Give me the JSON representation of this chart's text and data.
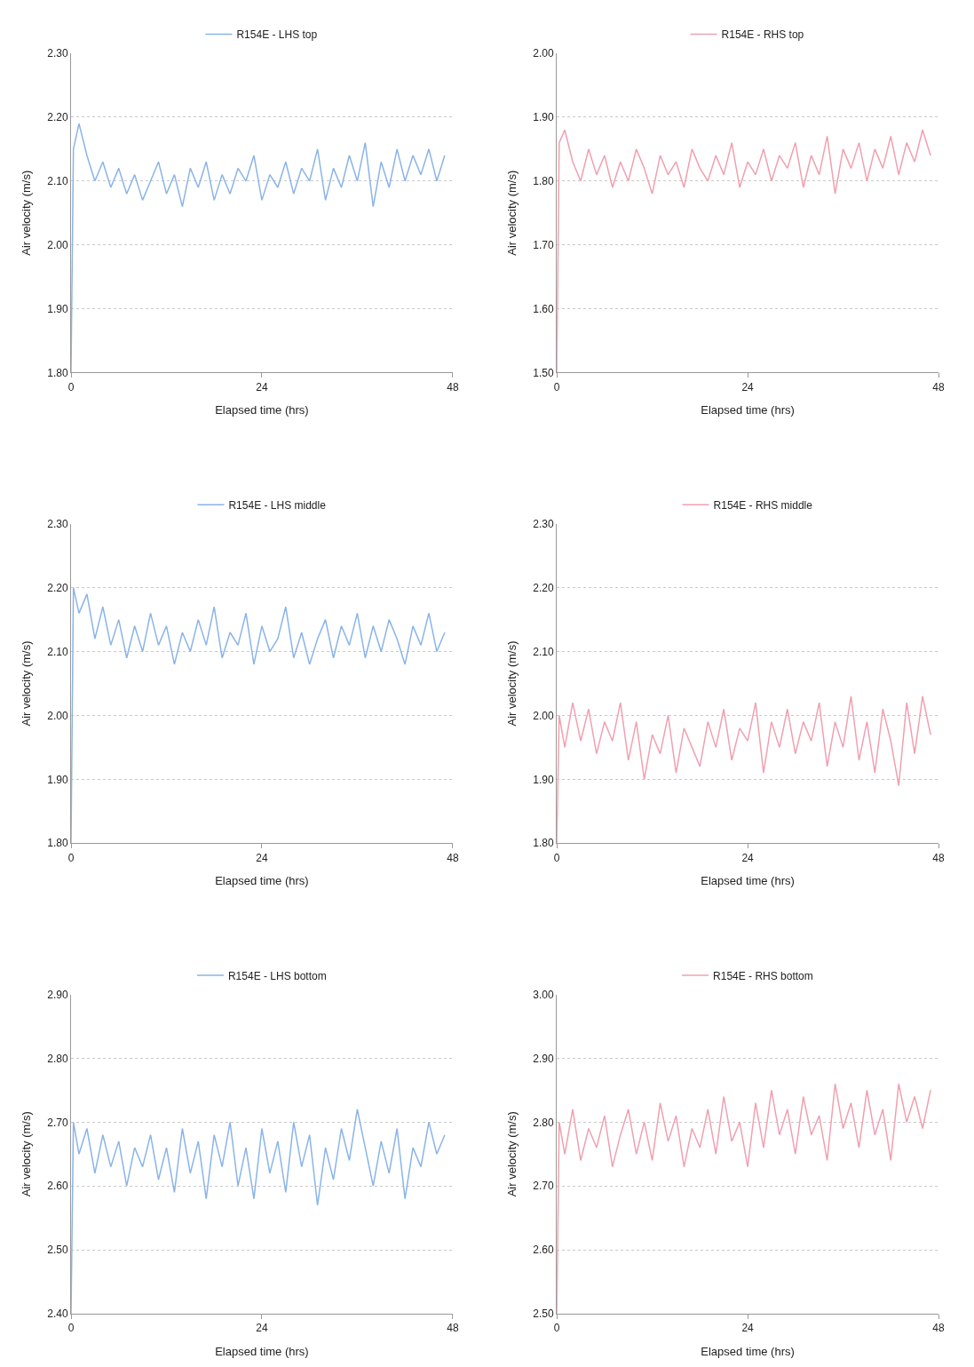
{
  "chart_data": [
    {
      "type": "line",
      "xlabel": "Elapsed time (hrs)",
      "ylabel": "Air velocity (m/s)",
      "x": [
        0,
        0.3,
        1,
        2,
        3,
        4,
        5,
        6,
        7,
        8,
        9,
        10,
        11,
        12,
        13,
        14,
        15,
        16,
        17,
        18,
        19,
        20,
        21,
        22,
        23,
        24,
        25,
        26,
        27,
        28,
        29,
        30,
        31,
        32,
        33,
        34,
        35,
        36,
        37,
        38,
        39,
        40,
        41,
        42,
        43,
        44,
        45,
        46,
        47
      ],
      "xlim": [
        0,
        48
      ],
      "xticks": [
        0,
        24,
        48
      ],
      "ylim": [
        1.8,
        2.3
      ],
      "yticks": [
        {
          "value": 1.8,
          "label": "1.80"
        },
        {
          "value": 1.9,
          "label": "1.90"
        },
        {
          "value": 2.0,
          "label": "2.00"
        },
        {
          "value": 2.1,
          "label": "2.10"
        },
        {
          "value": 2.2,
          "label": "2.20"
        },
        {
          "value": 2.3,
          "label": "2.30"
        }
      ],
      "grid": "y",
      "legend": "top",
      "marker": "none",
      "line_style": "solid",
      "series": [
        {
          "name": "R154E - LHS top",
          "color": "#8ab4e8",
          "values": [
            1.8,
            2.15,
            2.19,
            2.14,
            2.1,
            2.13,
            2.09,
            2.12,
            2.08,
            2.11,
            2.07,
            2.1,
            2.13,
            2.08,
            2.11,
            2.06,
            2.12,
            2.09,
            2.13,
            2.07,
            2.11,
            2.08,
            2.12,
            2.1,
            2.14,
            2.07,
            2.11,
            2.09,
            2.13,
            2.08,
            2.12,
            2.1,
            2.15,
            2.07,
            2.12,
            2.09,
            2.14,
            2.1,
            2.16,
            2.06,
            2.13,
            2.09,
            2.15,
            2.1,
            2.14,
            2.11,
            2.15,
            2.1,
            2.14
          ]
        }
      ]
    },
    {
      "type": "line",
      "xlabel": "Elapsed time (hrs)",
      "ylabel": "Air velocity (m/s)",
      "x": [
        0,
        0.3,
        1,
        2,
        3,
        4,
        5,
        6,
        7,
        8,
        9,
        10,
        11,
        12,
        13,
        14,
        15,
        16,
        17,
        18,
        19,
        20,
        21,
        22,
        23,
        24,
        25,
        26,
        27,
        28,
        29,
        30,
        31,
        32,
        33,
        34,
        35,
        36,
        37,
        38,
        39,
        40,
        41,
        42,
        43,
        44,
        45,
        46,
        47
      ],
      "xlim": [
        0,
        48
      ],
      "xticks": [
        0,
        24,
        48
      ],
      "ylim": [
        1.5,
        2.0
      ],
      "yticks": [
        {
          "value": 1.5,
          "label": "1.50"
        },
        {
          "value": 1.6,
          "label": "1.60"
        },
        {
          "value": 1.7,
          "label": "1.70"
        },
        {
          "value": 1.8,
          "label": "1.80"
        },
        {
          "value": 1.9,
          "label": "1.90"
        },
        {
          "value": 2.0,
          "label": "2.00"
        }
      ],
      "grid": "y",
      "legend": "top",
      "marker": "none",
      "line_style": "solid",
      "series": [
        {
          "name": "R154E - RHS top",
          "color": "#f0a0b0",
          "values": [
            1.5,
            1.86,
            1.88,
            1.83,
            1.8,
            1.85,
            1.81,
            1.84,
            1.79,
            1.83,
            1.8,
            1.85,
            1.82,
            1.78,
            1.84,
            1.81,
            1.83,
            1.79,
            1.85,
            1.82,
            1.8,
            1.84,
            1.81,
            1.86,
            1.79,
            1.83,
            1.81,
            1.85,
            1.8,
            1.84,
            1.82,
            1.86,
            1.79,
            1.84,
            1.81,
            1.87,
            1.78,
            1.85,
            1.82,
            1.86,
            1.8,
            1.85,
            1.82,
            1.87,
            1.81,
            1.86,
            1.83,
            1.88,
            1.84
          ]
        }
      ]
    },
    {
      "type": "line",
      "xlabel": "Elapsed time (hrs)",
      "ylabel": "Air velocity (m/s)",
      "x": [
        0,
        0.3,
        1,
        2,
        3,
        4,
        5,
        6,
        7,
        8,
        9,
        10,
        11,
        12,
        13,
        14,
        15,
        16,
        17,
        18,
        19,
        20,
        21,
        22,
        23,
        24,
        25,
        26,
        27,
        28,
        29,
        30,
        31,
        32,
        33,
        34,
        35,
        36,
        37,
        38,
        39,
        40,
        41,
        42,
        43,
        44,
        45,
        46,
        47
      ],
      "xlim": [
        0,
        48
      ],
      "xticks": [
        0,
        24,
        48
      ],
      "ylim": [
        1.8,
        2.3
      ],
      "yticks": [
        {
          "value": 1.8,
          "label": "1.80"
        },
        {
          "value": 1.9,
          "label": "1.90"
        },
        {
          "value": 2.0,
          "label": "2.00"
        },
        {
          "value": 2.1,
          "label": "2.10"
        },
        {
          "value": 2.2,
          "label": "2.20"
        },
        {
          "value": 2.3,
          "label": "2.30"
        }
      ],
      "grid": "y",
      "legend": "top",
      "marker": "none",
      "line_style": "solid",
      "series": [
        {
          "name": "R154E - LHS middle",
          "color": "#8ab4e8",
          "values": [
            1.8,
            2.2,
            2.16,
            2.19,
            2.12,
            2.17,
            2.11,
            2.15,
            2.09,
            2.14,
            2.1,
            2.16,
            2.11,
            2.14,
            2.08,
            2.13,
            2.1,
            2.15,
            2.11,
            2.17,
            2.09,
            2.13,
            2.11,
            2.16,
            2.08,
            2.14,
            2.1,
            2.12,
            2.17,
            2.09,
            2.13,
            2.08,
            2.12,
            2.15,
            2.09,
            2.14,
            2.11,
            2.16,
            2.09,
            2.14,
            2.1,
            2.15,
            2.12,
            2.08,
            2.14,
            2.11,
            2.16,
            2.1,
            2.13
          ]
        }
      ]
    },
    {
      "type": "line",
      "xlabel": "Elapsed time (hrs)",
      "ylabel": "Air velocity (m/s)",
      "x": [
        0,
        0.3,
        1,
        2,
        3,
        4,
        5,
        6,
        7,
        8,
        9,
        10,
        11,
        12,
        13,
        14,
        15,
        16,
        17,
        18,
        19,
        20,
        21,
        22,
        23,
        24,
        25,
        26,
        27,
        28,
        29,
        30,
        31,
        32,
        33,
        34,
        35,
        36,
        37,
        38,
        39,
        40,
        41,
        42,
        43,
        44,
        45,
        46,
        47
      ],
      "xlim": [
        0,
        48
      ],
      "xticks": [
        0,
        24,
        48
      ],
      "ylim": [
        1.8,
        2.3
      ],
      "yticks": [
        {
          "value": 1.8,
          "label": "1.80"
        },
        {
          "value": 1.9,
          "label": "1.90"
        },
        {
          "value": 2.0,
          "label": "2.00"
        },
        {
          "value": 2.1,
          "label": "2.10"
        },
        {
          "value": 2.2,
          "label": "2.20"
        },
        {
          "value": 2.3,
          "label": "2.30"
        }
      ],
      "grid": "y",
      "legend": "top",
      "marker": "none",
      "line_style": "solid",
      "series": [
        {
          "name": "R154E - RHS middle",
          "color": "#f0a0b0",
          "values": [
            1.8,
            2.0,
            1.95,
            2.02,
            1.96,
            2.01,
            1.94,
            1.99,
            1.96,
            2.02,
            1.93,
            1.99,
            1.9,
            1.97,
            1.94,
            2.0,
            1.91,
            1.98,
            1.95,
            1.92,
            1.99,
            1.95,
            2.01,
            1.93,
            1.98,
            1.96,
            2.02,
            1.91,
            1.99,
            1.95,
            2.01,
            1.94,
            1.99,
            1.96,
            2.02,
            1.92,
            1.99,
            1.95,
            2.03,
            1.93,
            1.99,
            1.91,
            2.01,
            1.96,
            1.89,
            2.02,
            1.94,
            2.03,
            1.97
          ]
        }
      ]
    },
    {
      "type": "line",
      "xlabel": "Elapsed time (hrs)",
      "ylabel": "Air velocity (m/s)",
      "x": [
        0,
        0.3,
        1,
        2,
        3,
        4,
        5,
        6,
        7,
        8,
        9,
        10,
        11,
        12,
        13,
        14,
        15,
        16,
        17,
        18,
        19,
        20,
        21,
        22,
        23,
        24,
        25,
        26,
        27,
        28,
        29,
        30,
        31,
        32,
        33,
        34,
        35,
        36,
        37,
        38,
        39,
        40,
        41,
        42,
        43,
        44,
        45,
        46,
        47
      ],
      "xlim": [
        0,
        48
      ],
      "xticks": [
        0,
        24,
        48
      ],
      "ylim": [
        2.4,
        2.9
      ],
      "yticks": [
        {
          "value": 2.4,
          "label": "2.40"
        },
        {
          "value": 2.5,
          "label": "2.50"
        },
        {
          "value": 2.6,
          "label": "2.60"
        },
        {
          "value": 2.7,
          "label": "2.70"
        },
        {
          "value": 2.8,
          "label": "2.80"
        },
        {
          "value": 2.9,
          "label": "2.90"
        }
      ],
      "grid": "y",
      "legend": "top",
      "marker": "none",
      "line_style": "solid",
      "series": [
        {
          "name": "R154E - LHS bottom",
          "color": "#8ab4e8",
          "values": [
            2.4,
            2.7,
            2.65,
            2.69,
            2.62,
            2.68,
            2.63,
            2.67,
            2.6,
            2.66,
            2.63,
            2.68,
            2.61,
            2.66,
            2.59,
            2.69,
            2.62,
            2.67,
            2.58,
            2.68,
            2.63,
            2.7,
            2.6,
            2.66,
            2.58,
            2.69,
            2.62,
            2.67,
            2.59,
            2.7,
            2.63,
            2.68,
            2.57,
            2.66,
            2.61,
            2.69,
            2.64,
            2.72,
            2.66,
            2.6,
            2.67,
            2.62,
            2.69,
            2.58,
            2.66,
            2.63,
            2.7,
            2.65,
            2.68
          ]
        }
      ]
    },
    {
      "type": "line",
      "xlabel": "Elapsed time (hrs)",
      "ylabel": "Air velocity (m/s)",
      "x": [
        0,
        0.3,
        1,
        2,
        3,
        4,
        5,
        6,
        7,
        8,
        9,
        10,
        11,
        12,
        13,
        14,
        15,
        16,
        17,
        18,
        19,
        20,
        21,
        22,
        23,
        24,
        25,
        26,
        27,
        28,
        29,
        30,
        31,
        32,
        33,
        34,
        35,
        36,
        37,
        38,
        39,
        40,
        41,
        42,
        43,
        44,
        45,
        46,
        47
      ],
      "xlim": [
        0,
        48
      ],
      "xticks": [
        0,
        24,
        48
      ],
      "ylim": [
        2.5,
        3.0
      ],
      "yticks": [
        {
          "value": 2.5,
          "label": "2.50"
        },
        {
          "value": 2.6,
          "label": "2.60"
        },
        {
          "value": 2.7,
          "label": "2.70"
        },
        {
          "value": 2.8,
          "label": "2.80"
        },
        {
          "value": 2.9,
          "label": "2.90"
        },
        {
          "value": 3.0,
          "label": "3.00"
        }
      ],
      "grid": "y",
      "legend": "top",
      "marker": "none",
      "line_style": "solid",
      "series": [
        {
          "name": "R154E - RHS bottom",
          "color": "#f0a0b0",
          "values": [
            2.5,
            2.8,
            2.75,
            2.82,
            2.74,
            2.79,
            2.76,
            2.81,
            2.73,
            2.78,
            2.82,
            2.75,
            2.8,
            2.74,
            2.83,
            2.77,
            2.81,
            2.73,
            2.79,
            2.76,
            2.82,
            2.75,
            2.84,
            2.77,
            2.8,
            2.73,
            2.83,
            2.76,
            2.85,
            2.78,
            2.82,
            2.75,
            2.84,
            2.78,
            2.81,
            2.74,
            2.86,
            2.79,
            2.83,
            2.76,
            2.85,
            2.78,
            2.82,
            2.74,
            2.86,
            2.8,
            2.84,
            2.79,
            2.85
          ]
        }
      ]
    }
  ]
}
